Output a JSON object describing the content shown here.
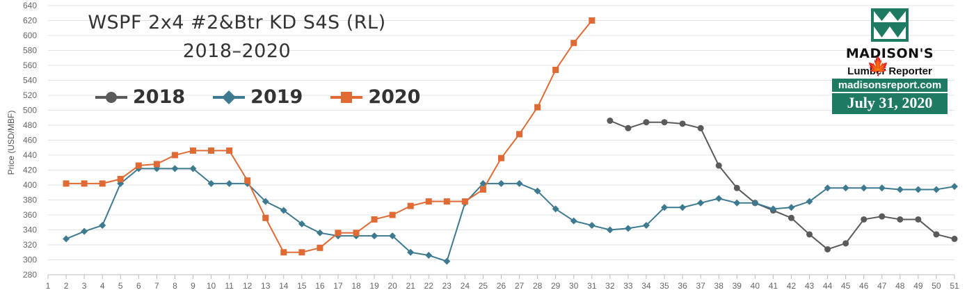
{
  "title": {
    "line1": "WSPF 2x4 #2&Btr KD S4S (RL)",
    "line2": "2018–2020"
  },
  "logo": {
    "name": "MADISON'S",
    "subtitle": "Lumber Reporter",
    "url": "madisonsreport.com",
    "date": "July 31, 2020"
  },
  "chart_data": {
    "type": "line",
    "ylabel": "Price (USD/MBF)",
    "xlabel": "",
    "ylim": [
      280,
      640
    ],
    "yticks": [
      280,
      300,
      320,
      340,
      360,
      380,
      400,
      420,
      440,
      460,
      480,
      500,
      520,
      540,
      560,
      580,
      600,
      620,
      640
    ],
    "xlim": [
      1,
      51
    ],
    "x": [
      1,
      2,
      3,
      4,
      5,
      6,
      7,
      8,
      9,
      10,
      11,
      12,
      13,
      14,
      15,
      16,
      17,
      18,
      19,
      20,
      21,
      22,
      23,
      24,
      25,
      26,
      27,
      28,
      29,
      30,
      31,
      32,
      33,
      34,
      35,
      36,
      37,
      38,
      39,
      40,
      41,
      42,
      43,
      44,
      45,
      46,
      47,
      48,
      49,
      50,
      51
    ],
    "grid": true,
    "legend_position": "top-left",
    "series": [
      {
        "name": "2018",
        "color": "#5a5a5a",
        "marker": "circle",
        "x": [
          32,
          33,
          34,
          35,
          36,
          37,
          38,
          39,
          40,
          41,
          42,
          43,
          44,
          45,
          46,
          47,
          48,
          49,
          50,
          51
        ],
        "y": [
          486,
          476,
          484,
          484,
          482,
          476,
          426,
          396,
          376,
          366,
          356,
          334,
          314,
          322,
          354,
          358,
          354,
          354,
          334,
          328
        ]
      },
      {
        "name": "2019",
        "color": "#3d7a90",
        "marker": "diamond",
        "x": [
          2,
          3,
          4,
          5,
          6,
          7,
          8,
          9,
          10,
          11,
          12,
          13,
          14,
          15,
          16,
          17,
          18,
          19,
          20,
          21,
          22,
          23,
          24,
          25,
          26,
          27,
          28,
          29,
          30,
          31,
          32,
          33,
          34,
          35,
          36,
          37,
          38,
          39,
          40,
          41,
          42,
          43,
          44,
          45,
          46,
          47,
          48,
          49,
          50,
          51
        ],
        "y": [
          328,
          338,
          346,
          402,
          422,
          422,
          422,
          422,
          402,
          402,
          402,
          378,
          366,
          348,
          336,
          332,
          332,
          332,
          332,
          310,
          306,
          298,
          376,
          402,
          402,
          402,
          392,
          368,
          352,
          346,
          340,
          342,
          346,
          370,
          370,
          376,
          382,
          376,
          376,
          368,
          370,
          378,
          396,
          396,
          396,
          396,
          394,
          394,
          394,
          398
        ]
      },
      {
        "name": "2020",
        "color": "#e06a33",
        "marker": "square",
        "x": [
          2,
          3,
          4,
          5,
          6,
          7,
          8,
          9,
          10,
          11,
          12,
          13,
          14,
          15,
          16,
          17,
          18,
          19,
          20,
          21,
          22,
          23,
          24,
          25,
          26,
          27,
          28,
          29,
          30,
          31
        ],
        "y": [
          402,
          402,
          402,
          408,
          426,
          428,
          440,
          446,
          446,
          446,
          406,
          356,
          310,
          310,
          316,
          336,
          336,
          354,
          360,
          372,
          378,
          378,
          378,
          394,
          436,
          468,
          504,
          554,
          590,
          620
        ]
      }
    ]
  }
}
